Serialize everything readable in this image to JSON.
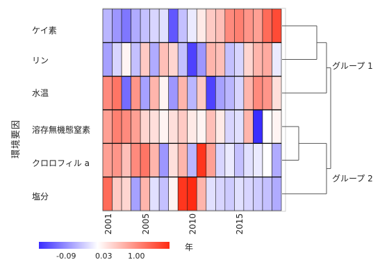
{
  "chart_data": {
    "type": "heatmap",
    "ylabel": "環境要因",
    "xlabel": "年",
    "rows": [
      "ケイ素",
      "リン",
      "水温",
      "溶存無機態窒素",
      "クロロフィル a",
      "塩分"
    ],
    "x_tick_labels": [
      "2001",
      "2005",
      "2010",
      "2015"
    ],
    "years": [
      2001,
      2002,
      2003,
      2004,
      2005,
      2006,
      2007,
      2008,
      2009,
      2010,
      2011,
      2012,
      2013,
      2014,
      2015,
      2016,
      2017,
      2018,
      2019
    ],
    "values": [
      [
        -0.35,
        -0.5,
        -0.65,
        -0.4,
        -0.3,
        -0.2,
        -0.15,
        -0.8,
        -0.3,
        -0.1,
        0.1,
        0.25,
        0.3,
        0.55,
        0.6,
        0.5,
        0.45,
        0.7,
        0.85
      ],
      [
        -0.45,
        -0.2,
        0.05,
        -0.3,
        0.25,
        -0.4,
        0.3,
        0.2,
        -0.3,
        -0.9,
        -0.5,
        0.35,
        0.3,
        -0.3,
        -0.2,
        0.2,
        0.35,
        0.4,
        -0.1
      ],
      [
        0.55,
        0.65,
        -0.7,
        0.5,
        -0.45,
        0.35,
        0.05,
        -0.5,
        0.35,
        -0.35,
        0.25,
        -0.9,
        -0.45,
        -0.35,
        -0.2,
        0.35,
        0.55,
        0.5,
        0.15
      ],
      [
        0.45,
        0.6,
        0.55,
        0.45,
        0.2,
        0.15,
        0.05,
        0.15,
        0.25,
        0.1,
        0.05,
        0.3,
        0.1,
        -0.2,
        -0.15,
        0.35,
        -1.0,
        0.0,
        0.05
      ],
      [
        0.45,
        0.5,
        0.3,
        0.55,
        0.65,
        0.35,
        -0.5,
        0.15,
        0.35,
        -0.35,
        0.95,
        0.45,
        -0.2,
        -0.1,
        -0.3,
        -0.15,
        -0.1,
        0.0,
        -0.4
      ],
      [
        0.7,
        0.25,
        0.2,
        -0.45,
        0.35,
        -0.15,
        -0.3,
        0.05,
        0.95,
        1.15,
        0.35,
        -0.15,
        -0.2,
        -0.25,
        -0.15,
        -0.2,
        -0.25,
        -0.3,
        -0.4
      ]
    ],
    "colorbar": {
      "ticks": [
        -0.09,
        0.03,
        1.0
      ],
      "tick_labels": [
        "-0.09",
        "0.03",
        "1.00"
      ],
      "low_color": "#3a2dff",
      "mid_color": "#ffffff",
      "high_color": "#ff2b12"
    },
    "groups": [
      "グループ 1",
      "グループ 2"
    ],
    "dendrogram": "rows: (ケイ素, リン) + 水温 = グループ 1; (溶存無機態窒素, クロロフィル a) + 塩分 = グループ 2"
  }
}
